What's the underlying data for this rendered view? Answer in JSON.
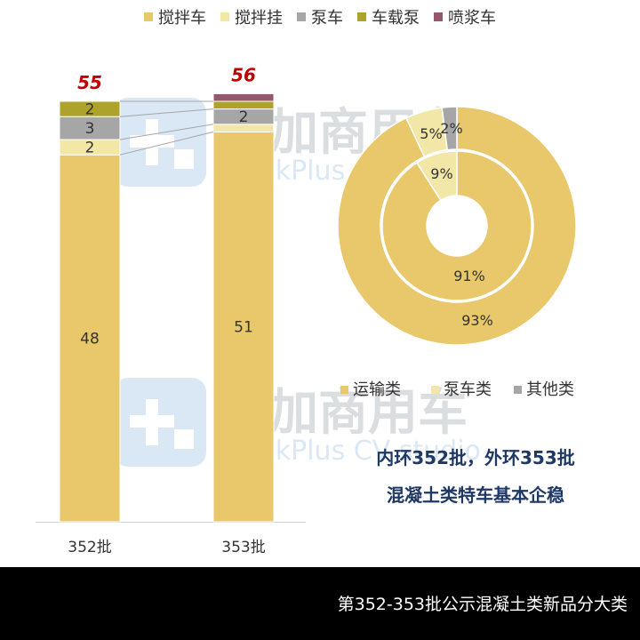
{
  "legend_top": [
    {
      "label": "搅拌车",
      "color": "#E8C86A"
    },
    {
      "label": "搅拌挂",
      "color": "#F2E7A6"
    },
    {
      "label": "泵车",
      "color": "#A6A6A6"
    },
    {
      "label": "车载泵",
      "color": "#ADA22B"
    },
    {
      "label": "喷浆车",
      "color": "#95576E"
    }
  ],
  "watermark": {
    "cn": "提加商用车",
    "en": "TruckPlus CV studio"
  },
  "chart_data": [
    {
      "type": "bar",
      "stacked": true,
      "categories": [
        "352批",
        "353批"
      ],
      "series": [
        {
          "name": "搅拌车",
          "values": [
            48,
            51
          ],
          "color": "#E8C86A"
        },
        {
          "name": "搅拌挂",
          "values": [
            2,
            1
          ],
          "color": "#F2E7A6"
        },
        {
          "name": "泵车",
          "values": [
            3,
            2
          ],
          "color": "#A6A6A6"
        },
        {
          "name": "车载泵",
          "values": [
            2,
            1
          ],
          "color": "#ADA22B"
        },
        {
          "name": "喷浆车",
          "values": [
            0,
            1
          ],
          "color": "#95576E"
        }
      ],
      "segment_labels": [
        [
          "48",
          "2",
          "3",
          "2",
          ""
        ],
        [
          "51",
          "",
          "2",
          "",
          ""
        ]
      ],
      "totals": [
        55,
        56
      ],
      "legend": "top",
      "grid": false
    },
    {
      "type": "pie",
      "donut": true,
      "categories": [
        "运输类",
        "泵车类",
        "其他类"
      ],
      "colors": [
        "#E8C86A",
        "#F2E7A6",
        "#A6A6A6"
      ],
      "rings": [
        {
          "name": "352批",
          "position": "inner",
          "values": [
            91,
            9,
            0
          ],
          "labels": [
            "91%",
            "9%",
            ""
          ]
        },
        {
          "name": "353批",
          "position": "outer",
          "values": [
            93,
            5,
            2
          ],
          "labels": [
            "93%",
            "5%",
            "2%"
          ]
        }
      ],
      "legend": "bottom"
    }
  ],
  "legend_pie": [
    {
      "label": "运输类",
      "color": "#E8C86A"
    },
    {
      "label": "泵车类",
      "color": "#F2E7A6"
    },
    {
      "label": "其他类",
      "color": "#A6A6A6"
    }
  ],
  "annotation": {
    "line1": "内环352批，外环353批",
    "line2": "混凝土类特车基本企稳",
    "color": "#1F3864"
  },
  "total_color": "#C00000",
  "footer": {
    "title": "第352-353批公示混凝土类新品分大类"
  }
}
